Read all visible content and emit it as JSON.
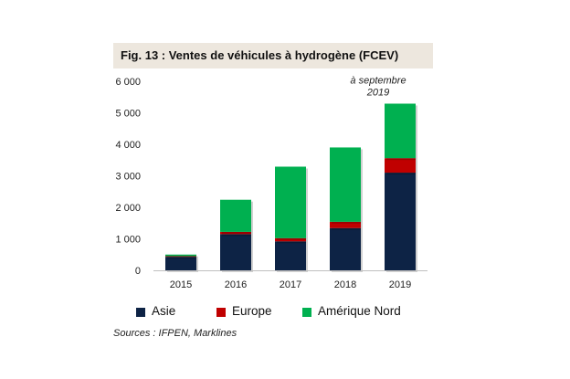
{
  "figure": {
    "title": "Fig. 13 : Ventes de véhicules à hydrogène (FCEV)",
    "source": "Sources : IFPEN, Marklines"
  },
  "colors": {
    "asie": "#0d2345",
    "europe": "#c00000",
    "amerique_nord": "#00b050",
    "title_bg": "#ede7de"
  },
  "chart_data": {
    "type": "bar",
    "stacked": true,
    "title": "Fig. 13 : Ventes de véhicules à hydrogène (FCEV)",
    "xlabel": "",
    "ylabel": "",
    "categories": [
      "2015",
      "2016",
      "2017",
      "2018",
      "2019"
    ],
    "series": [
      {
        "name": "Asie",
        "color": "#0d2345",
        "values": [
          430,
          1150,
          920,
          1340,
          3100
        ]
      },
      {
        "name": "Europe",
        "color": "#c00000",
        "values": [
          20,
          70,
          100,
          200,
          460
        ]
      },
      {
        "name": "Amérique Nord",
        "color": "#00b050",
        "values": [
          50,
          1020,
          2270,
          2360,
          1730
        ]
      }
    ],
    "ylim": [
      0,
      6000
    ],
    "yticks": [
      0,
      1000,
      2000,
      3000,
      4000,
      5000,
      6000
    ],
    "ytick_labels": [
      "0",
      "1 000",
      "2 000",
      "3 000",
      "4 000",
      "5 000",
      "6 000"
    ],
    "grid": false,
    "legend_position": "bottom",
    "annotation": {
      "lines": [
        "à septembre",
        "2019"
      ],
      "category": "2019"
    }
  }
}
